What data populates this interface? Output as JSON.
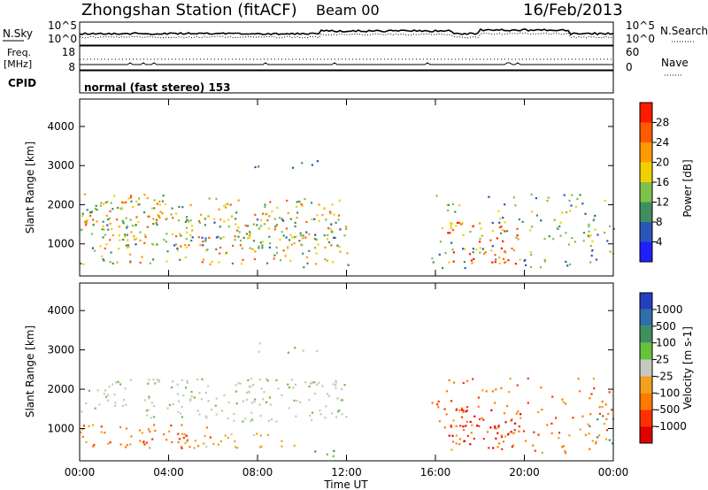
{
  "header": {
    "station": "Zhongshan Station (fitACF)",
    "beam": "Beam 00",
    "date": "16/Feb/2013"
  },
  "noise_panel": {
    "left_label": "N.Sky",
    "right_label": "N.Search",
    "ticks_left": [
      "10^5",
      "10^0"
    ],
    "ticks_right": [
      "10^5",
      "10^0"
    ]
  },
  "freq_panel": {
    "left_label_1": "Freq.",
    "left_label_2": "[MHz]",
    "right_label": "Nave",
    "ticks_left": [
      "18",
      "8"
    ],
    "ticks_right": [
      "60",
      "0"
    ]
  },
  "cpid": {
    "label": "CPID",
    "value": "normal (fast stereo) 153"
  },
  "chart_data": [
    {
      "type": "heatmap",
      "name": "Power",
      "ylabel": "Slant Range [km]",
      "xlabel": "Time UT",
      "yticks": [
        1000,
        2000,
        3000,
        4000
      ],
      "ylim": [
        180,
        4700
      ],
      "xticks": [
        "00:00",
        "04:00",
        "08:00",
        "12:00",
        "16:00",
        "20:00",
        "00:00"
      ],
      "colorbar": {
        "label": "Power [dB]",
        "ticks": [
          "4",
          "8",
          "12",
          "16",
          "20",
          "24",
          "28"
        ],
        "colors": [
          "#2020ff",
          "#2a56b8",
          "#3f8f5e",
          "#7cc24a",
          "#f0d000",
          "#ff9a00",
          "#ff5a00",
          "#ff1a00"
        ]
      }
    },
    {
      "type": "heatmap",
      "name": "Velocity",
      "ylabel": "Slant Range [km]",
      "xlabel": "Time UT",
      "yticks": [
        1000,
        2000,
        3000,
        4000
      ],
      "ylim": [
        180,
        4700
      ],
      "xticks": [
        "00:00",
        "04:00",
        "08:00",
        "12:00",
        "16:00",
        "20:00",
        "00:00"
      ],
      "colorbar": {
        "label": "Velocity [m s-1]",
        "ticks": [
          "1000",
          "500",
          "100",
          "25",
          "-25",
          "-100",
          "-500",
          "-1000"
        ],
        "colors": [
          "#2440c0",
          "#2f6ea8",
          "#3f8f5e",
          "#66c23a",
          "#c7c7c0",
          "#f2a020",
          "#ff7a00",
          "#ff3000",
          "#e00000"
        ]
      }
    }
  ],
  "x_axis": {
    "labels": [
      "00:00",
      "04:00",
      "08:00",
      "12:00",
      "16:00",
      "20:00",
      "00:00"
    ],
    "title": "Time UT"
  }
}
